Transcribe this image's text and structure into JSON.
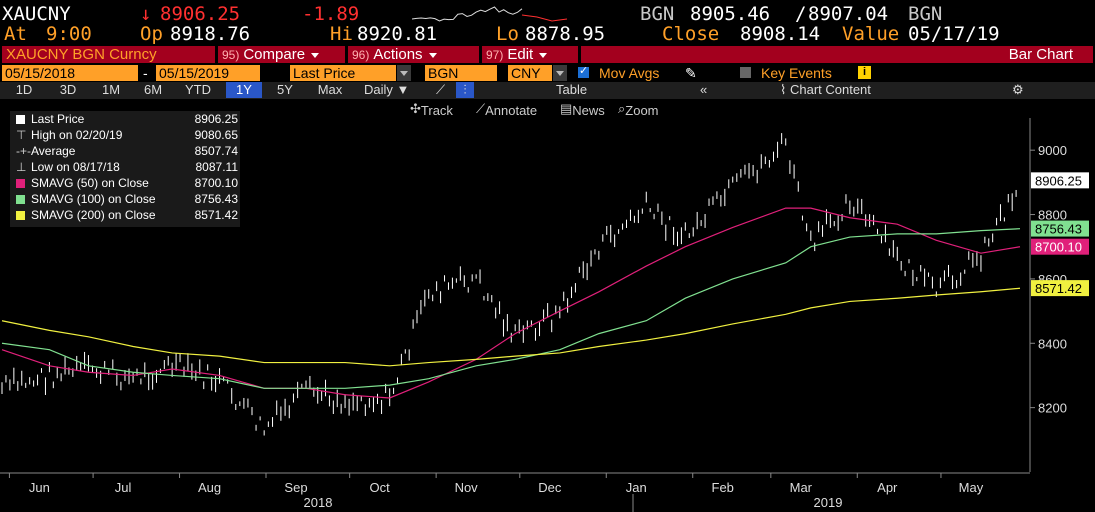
{
  "ticker": {
    "symbol": "XAUCNY",
    "last_arrow": "↓",
    "last": "8906.25",
    "change": "-1.89",
    "bid_src": "BGN",
    "bid": "8905.46",
    "ask": "8907.04",
    "ask_src": "BGN",
    "at_label": "At",
    "at_time": "9:00",
    "open_label": "Op",
    "open": "8918.76",
    "high_label": "Hi",
    "high": "8920.81",
    "low_label": "Lo",
    "low": "8878.95",
    "close_label": "Close",
    "close": "8908.14",
    "value_label": "Value",
    "value_date": "05/17/19"
  },
  "function_bar": {
    "security": "XAUCNY BGN Curncy",
    "compare_num": "95)",
    "compare": "Compare",
    "actions_num": "96)",
    "actions": "Actions",
    "edit_num": "97)",
    "edit": "Edit",
    "chart_type": "Bar Chart"
  },
  "params": {
    "start_date": "05/15/2018",
    "dash": "-",
    "end_date": "05/15/2019",
    "field": "Last Price",
    "source": "BGN",
    "currency": "CNY",
    "mov_avgs": "Mov Avgs",
    "key_events": "Key Events"
  },
  "periods": {
    "items": [
      "1D",
      "3D",
      "1M",
      "6M",
      "YTD",
      "1Y",
      "5Y",
      "Max"
    ],
    "selected": "1Y",
    "frequency": "Daily",
    "table": "Table",
    "chart_content": "Chart Content"
  },
  "chart_tools": {
    "track": "Track",
    "annotate": "Annotate",
    "news": "News",
    "zoom": "Zoom"
  },
  "legend": [
    {
      "label": "Last Price",
      "value": "8906.25",
      "color": "#ffffff"
    },
    {
      "label": "High on 02/20/19",
      "value": "9080.65",
      "color": ""
    },
    {
      "label": "Average",
      "value": "8507.74",
      "color": ""
    },
    {
      "label": "Low on 08/17/18",
      "value": "8087.11",
      "color": ""
    },
    {
      "label": "SMAVG (50)  on Close",
      "value": "8700.10",
      "color": "#e0207a"
    },
    {
      "label": "SMAVG (100)  on Close",
      "value": "8756.43",
      "color": "#80e090"
    },
    {
      "label": "SMAVG (200)  on Close",
      "value": "8571.42",
      "color": "#f0f040"
    }
  ],
  "chart_data": {
    "type": "line",
    "x": [
      "2018-05-15",
      "2018-06-01",
      "2018-06-15",
      "2018-07-01",
      "2018-07-15",
      "2018-08-01",
      "2018-08-17",
      "2018-09-01",
      "2018-09-15",
      "2018-10-01",
      "2018-10-15",
      "2018-11-01",
      "2018-11-15",
      "2018-12-01",
      "2018-12-15",
      "2019-01-01",
      "2019-01-15",
      "2019-02-01",
      "2019-02-20",
      "2019-03-01",
      "2019-03-15",
      "2019-04-01",
      "2019-04-15",
      "2019-05-01",
      "2019-05-15"
    ],
    "series": [
      {
        "name": "Last Price",
        "values": [
          8260,
          8300,
          8320,
          8290,
          8330,
          8280,
          8130,
          8250,
          8220,
          8230,
          8560,
          8600,
          8420,
          8500,
          8700,
          8820,
          8730,
          8880,
          9020,
          8700,
          8850,
          8660,
          8560,
          8680,
          8906
        ]
      },
      {
        "name": "SMAVG (50)  on Close",
        "values": [
          8380,
          8330,
          8310,
          8300,
          8320,
          8300,
          8260,
          8260,
          8240,
          8230,
          8280,
          8350,
          8430,
          8500,
          8560,
          8640,
          8700,
          8760,
          8820,
          8820,
          8790,
          8770,
          8720,
          8680,
          8700
        ]
      },
      {
        "name": "SMAVG (100)  on Close",
        "values": [
          8400,
          8380,
          8330,
          8310,
          8300,
          8290,
          8260,
          8260,
          8260,
          8270,
          8290,
          8330,
          8350,
          8380,
          8430,
          8470,
          8540,
          8600,
          8650,
          8700,
          8730,
          8740,
          8740,
          8750,
          8756
        ]
      },
      {
        "name": "SMAVG (200)  on Close",
        "values": [
          8470,
          8440,
          8420,
          8390,
          8370,
          8360,
          8340,
          8340,
          8340,
          8330,
          8340,
          8350,
          8360,
          8370,
          8390,
          8410,
          8430,
          8460,
          8490,
          8510,
          8530,
          8540,
          8550,
          8560,
          8571
        ]
      }
    ],
    "x_ticks": [
      "Jun",
      "Jul",
      "Aug",
      "Sep",
      "Oct",
      "Nov",
      "Dec",
      "Jan",
      "Feb",
      "Mar",
      "Apr",
      "May"
    ],
    "year_labels": [
      "2018",
      "2019"
    ],
    "y_ticks": [
      8200,
      8400,
      8600,
      8800,
      9000
    ],
    "ylim": [
      8000,
      9100
    ],
    "last_value_tags": [
      {
        "value": "8906.25",
        "color": "#ffffff"
      },
      {
        "value": "8756.43",
        "color": "#80e090"
      },
      {
        "value": "8700.10",
        "color": "#e0207a"
      },
      {
        "value": "8571.42",
        "color": "#f0f040"
      }
    ],
    "grid": false
  }
}
